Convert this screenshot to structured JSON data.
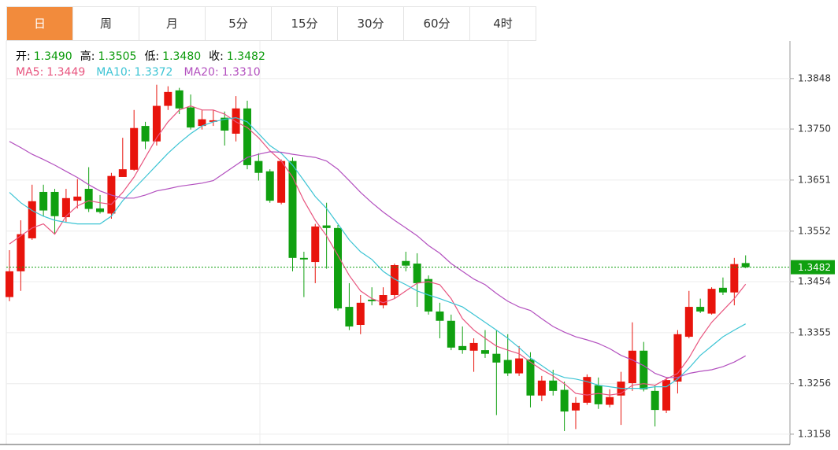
{
  "tabs": [
    "日",
    "周",
    "月",
    "5分",
    "15分",
    "30分",
    "60分",
    "4时"
  ],
  "active_tab": 0,
  "chart_data": {
    "type": "candlestick",
    "info": [
      {
        "name": "开:",
        "value": 1.349,
        "label": "1.3490"
      },
      {
        "name": "高:",
        "value": 1.3505,
        "label": "1.3505"
      },
      {
        "name": "低:",
        "value": 1.348,
        "label": "1.3480"
      },
      {
        "name": "收:",
        "value": 1.3482,
        "label": "1.3482"
      }
    ],
    "candles": {
      "open": [
        1.3424,
        1.3474,
        1.3538,
        1.3628,
        1.3628,
        1.3579,
        1.3611,
        1.3634,
        1.3596,
        1.3586,
        1.3657,
        1.3671,
        1.3756,
        1.3726,
        1.3795,
        1.3825,
        1.3792,
        1.3756,
        1.3764,
        1.3772,
        1.3741,
        1.379,
        1.3688,
        1.3668,
        1.3607,
        1.3688,
        1.35,
        1.3492,
        1.3563,
        1.3558,
        1.3405,
        1.337,
        1.3419,
        1.3408,
        1.3428,
        1.3494,
        1.3489,
        1.3459,
        1.3396,
        1.3378,
        1.3329,
        1.332,
        1.3321,
        1.3314,
        1.3302,
        1.3276,
        1.3303,
        1.3233,
        1.3262,
        1.3244,
        1.3204,
        1.3219,
        1.3253,
        1.3215,
        1.3233,
        1.3257,
        1.332,
        1.3242,
        1.3204,
        1.326,
        1.3347,
        1.3405,
        1.3392,
        1.3442,
        1.3433,
        1.349
      ],
      "high": [
        1.3515,
        1.3573,
        1.3642,
        1.3642,
        1.3634,
        1.3634,
        1.3653,
        1.3676,
        1.3622,
        1.3665,
        1.3733,
        1.3787,
        1.3764,
        1.3836,
        1.3833,
        1.383,
        1.3817,
        1.3787,
        1.3787,
        1.3784,
        1.3814,
        1.3805,
        1.3703,
        1.3672,
        1.3691,
        1.3695,
        1.3512,
        1.3566,
        1.3607,
        1.3564,
        1.3451,
        1.3428,
        1.3443,
        1.3443,
        1.3489,
        1.3512,
        1.3509,
        1.3466,
        1.3413,
        1.339,
        1.3367,
        1.3344,
        1.336,
        1.336,
        1.3352,
        1.3329,
        1.3317,
        1.3271,
        1.3283,
        1.326,
        1.323,
        1.3274,
        1.3268,
        1.3245,
        1.3279,
        1.3375,
        1.3337,
        1.3253,
        1.3268,
        1.336,
        1.3436,
        1.3421,
        1.3443,
        1.3462,
        1.35,
        1.3505
      ],
      "low": [
        1.3416,
        1.3436,
        1.3535,
        1.3581,
        1.3546,
        1.357,
        1.3596,
        1.3589,
        1.3586,
        1.3576,
        1.3657,
        1.3669,
        1.3711,
        1.3718,
        1.3787,
        1.3779,
        1.3749,
        1.3749,
        1.3756,
        1.3718,
        1.3726,
        1.3672,
        1.365,
        1.3607,
        1.3604,
        1.3474,
        1.3424,
        1.3451,
        1.3479,
        1.3398,
        1.336,
        1.3352,
        1.3408,
        1.3402,
        1.3421,
        1.3474,
        1.3405,
        1.339,
        1.3344,
        1.3321,
        1.3314,
        1.3279,
        1.3306,
        1.3195,
        1.3271,
        1.3271,
        1.321,
        1.3222,
        1.3233,
        1.3164,
        1.3168,
        1.3215,
        1.3207,
        1.321,
        1.3176,
        1.3242,
        1.3241,
        1.3173,
        1.3199,
        1.3237,
        1.3344,
        1.3393,
        1.339,
        1.3428,
        1.3408,
        1.348
      ],
      "close": [
        1.3474,
        1.3546,
        1.361,
        1.3592,
        1.3581,
        1.3616,
        1.3619,
        1.3595,
        1.3589,
        1.3659,
        1.3672,
        1.3752,
        1.3726,
        1.3795,
        1.3822,
        1.379,
        1.3753,
        1.3769,
        1.3767,
        1.3747,
        1.379,
        1.368,
        1.3665,
        1.3611,
        1.3688,
        1.35,
        1.3497,
        1.3561,
        1.3558,
        1.3402,
        1.3367,
        1.3413,
        1.3416,
        1.3428,
        1.3486,
        1.3485,
        1.3451,
        1.3396,
        1.3378,
        1.3326,
        1.3321,
        1.3335,
        1.3314,
        1.3297,
        1.3276,
        1.3305,
        1.3233,
        1.3262,
        1.3242,
        1.3202,
        1.3219,
        1.3269,
        1.3216,
        1.323,
        1.326,
        1.332,
        1.3245,
        1.3205,
        1.3263,
        1.3352,
        1.3405,
        1.3396,
        1.344,
        1.3433,
        1.3488,
        1.3482
      ]
    },
    "up_color": "#e8140c",
    "down_color": "#10a010",
    "series": [
      {
        "name": "MA5:",
        "color": "#e8557f",
        "last_label": "1.3449",
        "values": [
          1.3527,
          1.3543,
          1.3558,
          1.3566,
          1.3546,
          1.3581,
          1.3601,
          1.3611,
          1.3607,
          1.3604,
          1.3627,
          1.3657,
          1.3695,
          1.3733,
          1.3764,
          1.3787,
          1.3795,
          1.3787,
          1.3787,
          1.3779,
          1.3764,
          1.3753,
          1.3733,
          1.3708,
          1.3688,
          1.3657,
          1.3611,
          1.3573,
          1.3543,
          1.3505,
          1.3466,
          1.3436,
          1.3421,
          1.3413,
          1.3421,
          1.3436,
          1.3451,
          1.3454,
          1.3448,
          1.3421,
          1.3382,
          1.336,
          1.3344,
          1.3329,
          1.3321,
          1.3314,
          1.3298,
          1.3283,
          1.3271,
          1.3256,
          1.3237,
          1.3234,
          1.3237,
          1.3234,
          1.3237,
          1.3253,
          1.3256,
          1.3253,
          1.3265,
          1.3276,
          1.3306,
          1.3344,
          1.3375,
          1.3398,
          1.3421,
          1.3449
        ]
      },
      {
        "name": "MA10:",
        "color": "#3cc4d4",
        "last_label": "1.3372",
        "values": [
          1.3627,
          1.3607,
          1.3592,
          1.3581,
          1.3573,
          1.3569,
          1.3566,
          1.3566,
          1.3566,
          1.3581,
          1.3611,
          1.3634,
          1.3657,
          1.368,
          1.3703,
          1.3723,
          1.3741,
          1.3756,
          1.3764,
          1.3769,
          1.3772,
          1.3764,
          1.3741,
          1.3718,
          1.3703,
          1.368,
          1.365,
          1.3619,
          1.3596,
          1.3566,
          1.3535,
          1.3512,
          1.3497,
          1.3474,
          1.3459,
          1.3448,
          1.3436,
          1.3428,
          1.3421,
          1.3413,
          1.3405,
          1.339,
          1.3375,
          1.336,
          1.3344,
          1.3326,
          1.3306,
          1.3291,
          1.3276,
          1.3268,
          1.3265,
          1.326,
          1.3253,
          1.325,
          1.3247,
          1.3247,
          1.3247,
          1.325,
          1.325,
          1.3265,
          1.3286,
          1.3311,
          1.3329,
          1.3347,
          1.336,
          1.3372
        ]
      },
      {
        "name": "MA20:",
        "color": "#b350bf",
        "last_label": "1.3310",
        "values": [
          1.3726,
          1.3714,
          1.3701,
          1.3691,
          1.368,
          1.3668,
          1.3656,
          1.3642,
          1.363,
          1.3622,
          1.3616,
          1.3616,
          1.3622,
          1.363,
          1.3634,
          1.3639,
          1.3642,
          1.3645,
          1.365,
          1.3665,
          1.368,
          1.3695,
          1.3701,
          1.3706,
          1.3705,
          1.3701,
          1.3698,
          1.3695,
          1.3688,
          1.3672,
          1.365,
          1.3627,
          1.3607,
          1.3589,
          1.3573,
          1.3558,
          1.3543,
          1.3524,
          1.3509,
          1.3489,
          1.3474,
          1.3459,
          1.3448,
          1.3431,
          1.3416,
          1.3405,
          1.3398,
          1.3382,
          1.3367,
          1.3356,
          1.3347,
          1.3341,
          1.3334,
          1.3324,
          1.3311,
          1.3302,
          1.3291,
          1.3276,
          1.3268,
          1.3268,
          1.3276,
          1.328,
          1.3283,
          1.3289,
          1.3298,
          1.331
        ]
      }
    ],
    "ylim": [
      1.3138,
      1.3921
    ],
    "yticks": [
      1.3848,
      {
        "value": 1.375,
        "label": "1.3750"
      },
      1.3651,
      1.3552,
      1.3454,
      1.3355,
      1.3256,
      1.3158
    ],
    "grid": true,
    "last_price": {
      "value": 1.3482,
      "label": "1.3482"
    },
    "last_color": "#10a010"
  }
}
